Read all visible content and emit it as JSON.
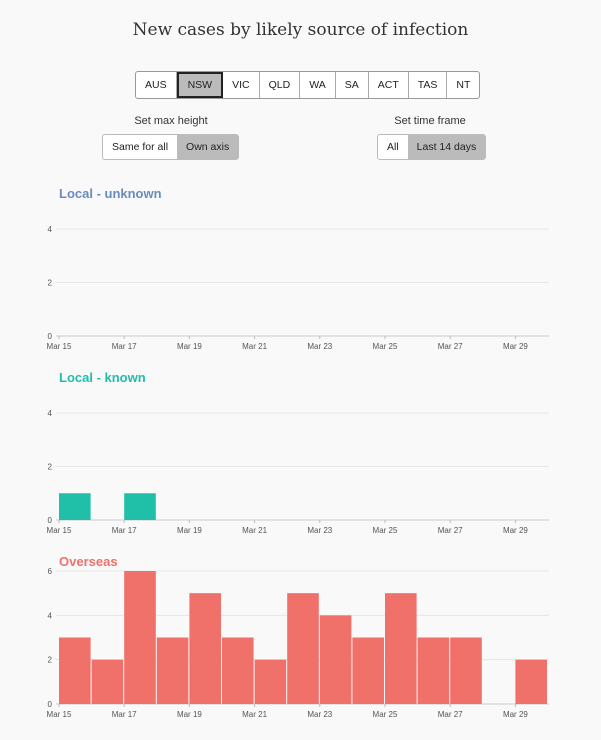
{
  "title": "New cases by likely source of infection",
  "states": [
    "AUS",
    "NSW",
    "VIC",
    "QLD",
    "WA",
    "SA",
    "ACT",
    "TAS",
    "NT"
  ],
  "selected_state": "NSW",
  "max_height": {
    "label": "Set max height",
    "options": [
      "Same for all",
      "Own axis"
    ],
    "selected": "Own axis"
  },
  "time_frame": {
    "label": "Set time frame",
    "options": [
      "All",
      "Last 14 days"
    ],
    "selected": "Last 14 days"
  },
  "colors": {
    "local_unknown": "#6a8cbd",
    "local_known": "#20bfa7",
    "overseas": "#f0706a"
  },
  "x_tick_labels": [
    "Mar 15",
    "Mar 17",
    "Mar 19",
    "Mar 21",
    "Mar 23",
    "Mar 25",
    "Mar 27",
    "Mar 29"
  ],
  "chart_data": [
    {
      "type": "bar",
      "title": "Local - unknown",
      "color": "#6a8cbd",
      "categories": [
        "Mar 15",
        "Mar 16",
        "Mar 17",
        "Mar 18",
        "Mar 19",
        "Mar 20",
        "Mar 21",
        "Mar 22",
        "Mar 23",
        "Mar 24",
        "Mar 25",
        "Mar 26",
        "Mar 27",
        "Mar 28",
        "Mar 29"
      ],
      "values": [
        0,
        0,
        0,
        0,
        0,
        0,
        0,
        0,
        0,
        0,
        0,
        0,
        0,
        0,
        0
      ],
      "yticks": [
        0,
        2,
        4
      ],
      "ylim": [
        0,
        4
      ],
      "grid": true
    },
    {
      "type": "bar",
      "title": "Local - known",
      "color": "#20bfa7",
      "categories": [
        "Mar 15",
        "Mar 16",
        "Mar 17",
        "Mar 18",
        "Mar 19",
        "Mar 20",
        "Mar 21",
        "Mar 22",
        "Mar 23",
        "Mar 24",
        "Mar 25",
        "Mar 26",
        "Mar 27",
        "Mar 28",
        "Mar 29"
      ],
      "values": [
        1,
        0,
        1,
        0,
        0,
        0,
        0,
        0,
        0,
        0,
        0,
        0,
        0,
        0,
        0
      ],
      "yticks": [
        0,
        2,
        4
      ],
      "ylim": [
        0,
        4
      ],
      "grid": true
    },
    {
      "type": "bar",
      "title": "Overseas",
      "color": "#f0706a",
      "categories": [
        "Mar 15",
        "Mar 16",
        "Mar 17",
        "Mar 18",
        "Mar 19",
        "Mar 20",
        "Mar 21",
        "Mar 22",
        "Mar 23",
        "Mar 24",
        "Mar 25",
        "Mar 26",
        "Mar 27",
        "Mar 28",
        "Mar 29"
      ],
      "values": [
        3,
        2,
        6,
        3,
        5,
        3,
        2,
        5,
        4,
        3,
        5,
        3,
        3,
        0,
        2
      ],
      "yticks": [
        0,
        2,
        4,
        6
      ],
      "ylim": [
        0,
        6
      ],
      "grid": true
    }
  ]
}
